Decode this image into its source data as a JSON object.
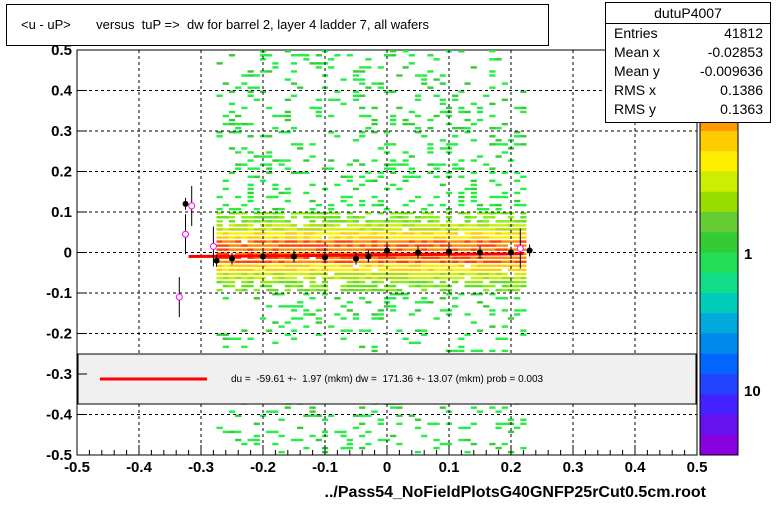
{
  "title": "<u - uP>       versus  tuP =>  dw for barrel 2, layer 4 ladder 7, all wafers",
  "stats": {
    "name": "dutuP4007",
    "rows": [
      {
        "label": "Entries",
        "value": "41812"
      },
      {
        "label": "Mean x",
        "value": "-0.02853"
      },
      {
        "label": "Mean y",
        "value": "-0.009636"
      },
      {
        "label": "RMS x",
        "value": "0.1386"
      },
      {
        "label": "RMS y",
        "value": "0.1363"
      }
    ]
  },
  "fit_text": "du =  -59.61 +-  1.97 (mkm) dw =  171.36 +- 13.07 (mkm) prob = 0.003",
  "x_title": "../Pass54_NoFieldPlotsG40GNFP25rCut0.5cm.root",
  "colors": {
    "fit_line": "#ff0000",
    "profile": "#000000",
    "open_markers": "#ff00ff",
    "legend_bg": "#f0f0f0"
  },
  "chart_data": {
    "type": "heatmap",
    "xlim": [
      -0.5,
      0.5
    ],
    "ylim": [
      -0.5,
      0.5
    ],
    "x_ticks": [
      "-0.5",
      "-0.4",
      "-0.3",
      "-0.2",
      "-0.1",
      "0",
      "0.1",
      "0.2",
      "0.3",
      "0.4",
      "0.5"
    ],
    "y_ticks": [
      "-0.5",
      "-0.4",
      "-0.3",
      "-0.2",
      "-0.1",
      "0",
      "0.1",
      "0.2",
      "0.3",
      "0.4",
      "0.5"
    ],
    "z_scale": "log",
    "z_ticks": [
      "1",
      "10"
    ],
    "grid": true,
    "occupied_x_range": [
      -0.275,
      0.225
    ],
    "profile_points": [
      {
        "x": -0.325,
        "y": 0.12
      },
      {
        "x": -0.275,
        "y": -0.02
      },
      {
        "x": -0.25,
        "y": -0.015
      },
      {
        "x": -0.2,
        "y": -0.01
      },
      {
        "x": -0.15,
        "y": -0.01
      },
      {
        "x": -0.1,
        "y": -0.012
      },
      {
        "x": -0.05,
        "y": -0.015
      },
      {
        "x": -0.03,
        "y": -0.01
      },
      {
        "x": 0,
        "y": 0.005
      },
      {
        "x": 0.05,
        "y": 0.0
      },
      {
        "x": 0.1,
        "y": 0.002
      },
      {
        "x": 0.15,
        "y": 0.0
      },
      {
        "x": 0.2,
        "y": 0.0
      },
      {
        "x": 0.23,
        "y": 0.005
      }
    ],
    "open_points": [
      {
        "x": -0.335,
        "y": -0.11
      },
      {
        "x": -0.325,
        "y": 0.045
      },
      {
        "x": -0.315,
        "y": 0.115
      },
      {
        "x": -0.28,
        "y": 0.015
      },
      {
        "x": 0.215,
        "y": 0.01
      }
    ],
    "fit_line": {
      "x": [
        -0.32,
        0.22
      ],
      "y": [
        -0.01,
        -0.003
      ]
    }
  }
}
